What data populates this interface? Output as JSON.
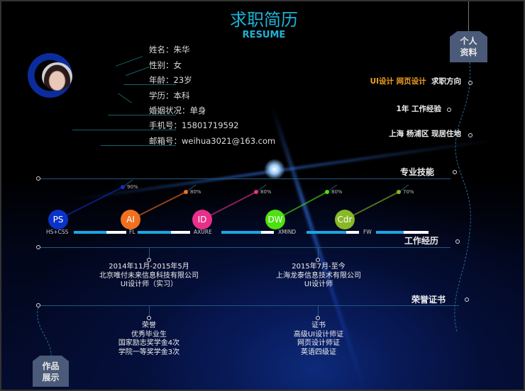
{
  "header": {
    "title": "求职简历",
    "subtitle": "RESUME"
  },
  "profile": {
    "items": [
      "姓名：朱华",
      "性别：女",
      "年龄：23岁",
      "学历：本科",
      "婚姻状况：单身",
      "手机号：15801719592",
      "邮箱号：weihua3021@163.com"
    ]
  },
  "tags": {
    "personal": [
      "个人",
      "资料"
    ],
    "works": [
      "作品",
      "展示"
    ]
  },
  "summary": [
    {
      "highlight": "UI设计  网页设计",
      "label": "求职方向"
    },
    {
      "highlight": "",
      "label": "1年  工作经验"
    },
    {
      "highlight": "",
      "label": "上海  杨浦区  现居住地"
    }
  ],
  "sections": {
    "skills": "专业技能",
    "work": "工作经历",
    "honors": "荣誉证书"
  },
  "skills": [
    {
      "name": "PS",
      "percent": "90%",
      "value": 90,
      "color": "#0a32c8"
    },
    {
      "name": "AI",
      "percent": "80%",
      "value": 80,
      "color": "#f07020"
    },
    {
      "name": "ID",
      "percent": "80%",
      "value": 80,
      "color": "#e8308a"
    },
    {
      "name": "DW",
      "percent": "80%",
      "value": 80,
      "color": "#4ee010"
    },
    {
      "name": "Cdr",
      "percent": "70%",
      "value": 70,
      "color": "#88b828"
    }
  ],
  "minor_skills": [
    {
      "name": "HS+CSS",
      "value": 62
    },
    {
      "name": "FL",
      "value": 63
    },
    {
      "name": "AXURE",
      "value": 75
    },
    {
      "name": "XMIND",
      "value": 75
    },
    {
      "name": "FW",
      "value": 53
    }
  ],
  "work": [
    {
      "period": "2014年11月-2015年5月",
      "company": "北京唯付未来信息科技有限公司",
      "role": "UI设计师（实习）"
    },
    {
      "period": "2015年7月-至今",
      "company": "上海龙泰信息技术有限公司",
      "role": "UI设计师"
    }
  ],
  "honors": [
    {
      "lines": [
        "荣誉",
        "优秀毕业生",
        "国家励志奖学金4次",
        "学院一等奖学金3次"
      ]
    },
    {
      "lines": [
        "证书",
        "高级UI设计师证",
        "网页设计师证",
        "英语四级证"
      ]
    }
  ],
  "colors": {
    "accent": "#1fb2d6",
    "highlight": "#f0a020",
    "bar": "#1aa6e4"
  }
}
